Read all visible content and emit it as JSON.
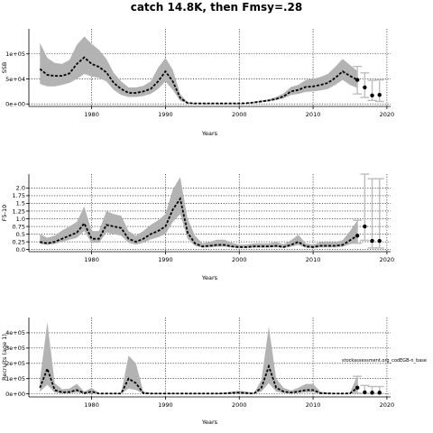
{
  "page_title": "catch 14.8K, then Fmsy=.28",
  "chart_data": [
    {
      "type": "line",
      "xlabel": "Years",
      "ylabel": "SSB",
      "xlim": [
        1971.5,
        2020.5
      ],
      "ylim": [
        -5000,
        150000
      ],
      "x_ticks": [
        1980,
        1990,
        2000,
        2010,
        2020
      ],
      "x_tick_labels": [
        "1980",
        "1990",
        "2000",
        "2010",
        "2020"
      ],
      "y_ticks": [
        0,
        50000,
        100000
      ],
      "y_tick_labels": [
        "0e+00",
        "5e+04",
        "1e+05"
      ],
      "grid": true,
      "series": [
        {
          "x": [
            1973,
            1974,
            1975,
            1976,
            1977,
            1978,
            1979,
            1980,
            1981,
            1982,
            1983,
            1984,
            1985,
            1986,
            1987,
            1988,
            1989,
            1990,
            1991,
            1992,
            1993,
            1994,
            1995,
            1996,
            1997,
            1998,
            1999,
            2000,
            2001,
            2002,
            2003,
            2004,
            2005,
            2006,
            2007,
            2008,
            2009,
            2010,
            2011,
            2012,
            2013,
            2014,
            2015,
            2016
          ],
          "values": [
            70000,
            58000,
            56000,
            56000,
            61000,
            80000,
            93000,
            80000,
            74000,
            63000,
            42000,
            30000,
            22000,
            22000,
            25000,
            30000,
            45000,
            65000,
            45000,
            12000,
            2000,
            1000,
            1000,
            1000,
            1000,
            1000,
            1000,
            1000,
            1500,
            3000,
            5000,
            7000,
            10000,
            15000,
            25000,
            28000,
            34000,
            35000,
            38000,
            42000,
            52000,
            65000,
            56000,
            48000
          ],
          "lower": [
            40000,
            35000,
            35000,
            38000,
            42000,
            50000,
            60000,
            55000,
            52000,
            45000,
            28000,
            18000,
            14000,
            14000,
            16000,
            20000,
            30000,
            45000,
            28000,
            6000,
            1000,
            500,
            500,
            500,
            500,
            500,
            500,
            500,
            800,
            2000,
            3500,
            5000,
            7500,
            11000,
            18000,
            20000,
            24000,
            25000,
            27000,
            30000,
            38000,
            48000,
            38000,
            32000
          ],
          "upper": [
            122000,
            92000,
            82000,
            80000,
            88000,
            118000,
            135000,
            120000,
            108000,
            90000,
            62000,
            45000,
            33000,
            33000,
            36000,
            45000,
            72000,
            92000,
            68000,
            20000,
            3000,
            1500,
            1500,
            1500,
            1500,
            1500,
            1500,
            1500,
            2500,
            4500,
            7000,
            9500,
            14000,
            21000,
            34000,
            38000,
            48000,
            50000,
            54000,
            60000,
            74000,
            90000,
            78000,
            66000
          ]
        }
      ],
      "projection": [
        {
          "x": 2016,
          "value": 48000,
          "lower": 20000,
          "upper": 75000
        },
        {
          "x": 2017,
          "value": 33000,
          "lower": 13000,
          "upper": 62000
        },
        {
          "x": 2018,
          "value": 17000,
          "lower": 7000,
          "upper": 47000
        },
        {
          "x": 2019,
          "value": 18000,
          "lower": 5000,
          "upper": 48000
        }
      ],
      "annotation": ""
    },
    {
      "type": "line",
      "xlabel": "Years",
      "ylabel": "F5-10",
      "xlim": [
        1971.5,
        2020.5
      ],
      "ylim": [
        -0.07,
        2.45
      ],
      "x_ticks": [
        1980,
        1990,
        2000,
        2010,
        2020
      ],
      "x_tick_labels": [
        "1980",
        "1990",
        "2000",
        "2010",
        "2020"
      ],
      "y_ticks": [
        0,
        0.25,
        0.5,
        0.75,
        1.0,
        1.25,
        1.5,
        1.75,
        2.0
      ],
      "y_tick_labels": [
        "0.0",
        "0.25",
        "0.5",
        "0.75",
        "1.0",
        "1.25",
        "1.5",
        "1.75",
        "2.0"
      ],
      "grid": true,
      "series": [
        {
          "x": [
            1973,
            1974,
            1975,
            1976,
            1977,
            1978,
            1979,
            1980,
            1981,
            1982,
            1983,
            1984,
            1985,
            1986,
            1987,
            1988,
            1989,
            1990,
            1991,
            1992,
            1993,
            1994,
            1995,
            1996,
            1997,
            1998,
            1999,
            2000,
            2001,
            2002,
            2003,
            2004,
            2005,
            2006,
            2007,
            2008,
            2009,
            2010,
            2011,
            2012,
            2013,
            2014,
            2015,
            2016
          ],
          "values": [
            0.25,
            0.2,
            0.25,
            0.35,
            0.45,
            0.55,
            0.85,
            0.35,
            0.35,
            0.8,
            0.75,
            0.7,
            0.35,
            0.25,
            0.35,
            0.5,
            0.6,
            0.75,
            1.3,
            1.65,
            0.55,
            0.2,
            0.1,
            0.12,
            0.15,
            0.15,
            0.1,
            0.08,
            0.08,
            0.1,
            0.1,
            0.1,
            0.12,
            0.08,
            0.15,
            0.25,
            0.1,
            0.08,
            0.12,
            0.12,
            0.12,
            0.15,
            0.3,
            0.45
          ],
          "lower": [
            0.18,
            0.15,
            0.18,
            0.25,
            0.32,
            0.38,
            0.6,
            0.22,
            0.22,
            0.55,
            0.5,
            0.45,
            0.22,
            0.16,
            0.22,
            0.33,
            0.4,
            0.5,
            0.9,
            1.15,
            0.35,
            0.12,
            0.06,
            0.07,
            0.09,
            0.09,
            0.06,
            0.05,
            0.05,
            0.06,
            0.06,
            0.06,
            0.07,
            0.05,
            0.09,
            0.15,
            0.06,
            0.05,
            0.07,
            0.07,
            0.07,
            0.09,
            0.17,
            0.22
          ],
          "upper": [
            0.5,
            0.38,
            0.45,
            0.62,
            0.75,
            0.9,
            1.4,
            0.6,
            0.6,
            1.25,
            1.15,
            1.1,
            0.6,
            0.45,
            0.6,
            0.8,
            0.95,
            1.15,
            1.95,
            2.35,
            1.0,
            0.45,
            0.2,
            0.25,
            0.32,
            0.32,
            0.22,
            0.16,
            0.16,
            0.2,
            0.2,
            0.2,
            0.24,
            0.17,
            0.3,
            0.48,
            0.2,
            0.16,
            0.24,
            0.24,
            0.24,
            0.3,
            0.6,
            0.95
          ]
        }
      ],
      "projection": [
        {
          "x": 2016,
          "value": 0.45,
          "lower": 0.2,
          "upper": 0.95
        },
        {
          "x": 2017,
          "value": 0.75,
          "lower": 0.3,
          "upper": 2.45
        },
        {
          "x": 2018,
          "value": 0.28,
          "lower": 0.05,
          "upper": 2.3
        },
        {
          "x": 2019,
          "value": 0.28,
          "lower": 0.05,
          "upper": 2.3
        }
      ],
      "annotation": ""
    },
    {
      "type": "line",
      "xlabel": "Years",
      "ylabel": "Recruits (age 1)",
      "xlim": [
        1971.5,
        2020.5
      ],
      "ylim": [
        -20000,
        500000
      ],
      "x_ticks": [
        1980,
        1990,
        2000,
        2010,
        2020
      ],
      "x_tick_labels": [
        "1980",
        "1990",
        "2000",
        "2010",
        "2020"
      ],
      "y_ticks": [
        0,
        100000,
        200000,
        300000,
        400000
      ],
      "y_tick_labels": [
        "0e+00",
        "1e+05",
        "2e+05",
        "3e+05",
        "4e+05"
      ],
      "grid": true,
      "series": [
        {
          "x": [
            1973,
            1974,
            1975,
            1976,
            1977,
            1978,
            1979,
            1980,
            1981,
            1982,
            1983,
            1984,
            1985,
            1986,
            1987,
            1988,
            1989,
            1990,
            1991,
            1992,
            1993,
            1994,
            1995,
            1996,
            1997,
            1998,
            1999,
            2000,
            2001,
            2002,
            2003,
            2004,
            2005,
            2006,
            2007,
            2008,
            2009,
            2010,
            2011,
            2012,
            2013,
            2014,
            2015,
            2016
          ],
          "values": [
            40000,
            165000,
            25000,
            10000,
            12000,
            25000,
            5000,
            15000,
            2000,
            2000,
            2000,
            2000,
            100000,
            70000,
            5000,
            2000,
            2000,
            2000,
            2000,
            2000,
            2000,
            2000,
            2000,
            2000,
            2000,
            3000,
            6000,
            8000,
            5000,
            2000,
            40000,
            180000,
            40000,
            15000,
            8000,
            15000,
            25000,
            25000,
            5000,
            3000,
            2000,
            2000,
            3000,
            40000
          ],
          "lower": [
            15000,
            60000,
            8000,
            3000,
            4000,
            8000,
            1500,
            5000,
            500,
            500,
            500,
            500,
            35000,
            25000,
            1500,
            500,
            500,
            500,
            500,
            500,
            500,
            500,
            500,
            500,
            500,
            800,
            2000,
            2500,
            1500,
            500,
            15000,
            70000,
            15000,
            5000,
            2500,
            5000,
            9000,
            9000,
            1500,
            800,
            500,
            500,
            800,
            12000
          ],
          "upper": [
            90000,
            470000,
            70000,
            30000,
            35000,
            65000,
            15000,
            40000,
            5000,
            5000,
            5000,
            5000,
            250000,
            200000,
            15000,
            5000,
            5000,
            5000,
            5000,
            5000,
            5000,
            5000,
            5000,
            5000,
            5000,
            8000,
            15000,
            20000,
            14000,
            5000,
            90000,
            440000,
            100000,
            40000,
            22000,
            40000,
            65000,
            65000,
            14000,
            8000,
            5000,
            5000,
            8000,
            120000
          ]
        }
      ],
      "projection": [
        {
          "x": 2016,
          "value": 40000,
          "lower": 5000,
          "upper": 115000
        },
        {
          "x": 2017,
          "value": 10000,
          "lower": 2000,
          "upper": 55000
        },
        {
          "x": 2018,
          "value": 8000,
          "lower": 2000,
          "upper": 48000
        },
        {
          "x": 2019,
          "value": 8000,
          "lower": 2000,
          "upper": 48000
        }
      ],
      "annotation": "stockassessment.org_codEGB-n_base"
    }
  ]
}
